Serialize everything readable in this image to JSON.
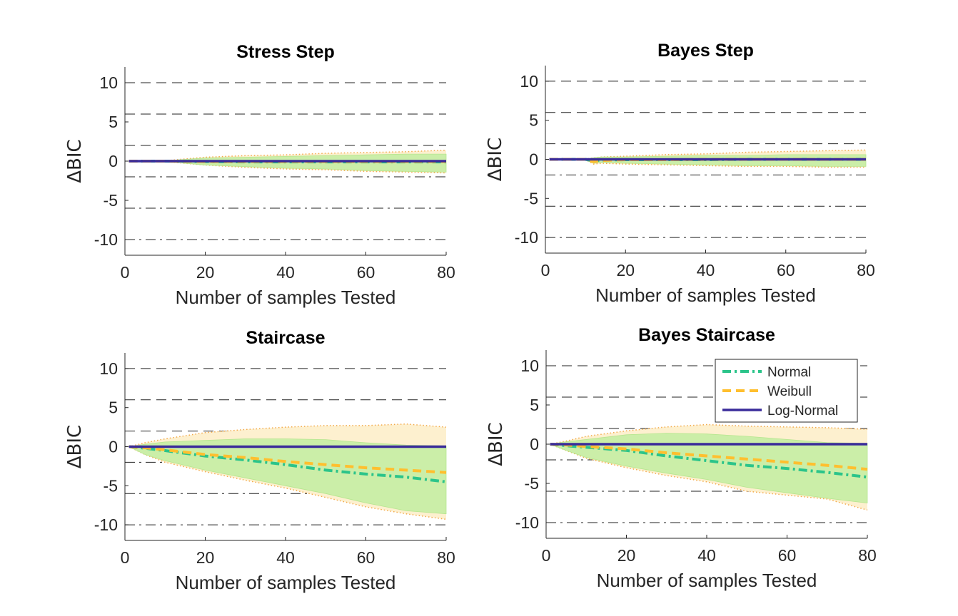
{
  "colors": {
    "normal": "#2bc48a",
    "weibull": "#ffbf2e",
    "lognormal": "#3a2b9a",
    "band_outer": "#fdf0cf",
    "band_inner": "#cbeea8",
    "band_edge": "#f3a94a"
  },
  "legend": {
    "entries": [
      {
        "label": "Normal",
        "style": "dash-dot",
        "color": "#2bc48a"
      },
      {
        "label": "Weibull",
        "style": "dashed",
        "color": "#ffbf2e"
      },
      {
        "label": "Log-Normal",
        "style": "solid",
        "color": "#3a2b9a"
      }
    ]
  },
  "chart_data": [
    {
      "type": "line",
      "title": "Stress Step",
      "xlabel": "Number of samples Tested",
      "ylabel": "ΔBIC",
      "xlim": [
        0,
        80
      ],
      "ylim": [
        -12,
        12
      ],
      "xticks": [
        0,
        20,
        40,
        60,
        80
      ],
      "yticks": [
        10,
        5,
        0,
        -5,
        -10
      ],
      "reference_lines": [
        {
          "y": 10,
          "style": "dashed"
        },
        {
          "y": 6,
          "style": "dashed"
        },
        {
          "y": 2,
          "style": "dashed"
        },
        {
          "y": -2,
          "style": "dash-dot"
        },
        {
          "y": -6,
          "style": "dash-dot"
        },
        {
          "y": -10,
          "style": "dash-dot"
        }
      ],
      "x": [
        1,
        10,
        20,
        30,
        40,
        50,
        60,
        70,
        80
      ],
      "series": [
        {
          "name": "Normal",
          "values": [
            0,
            0,
            -0.05,
            -0.1,
            -0.1,
            -0.1,
            -0.1,
            -0.1,
            -0.1
          ]
        },
        {
          "name": "Weibull",
          "values": [
            0,
            0,
            -0.05,
            -0.05,
            -0.05,
            -0.05,
            -0.05,
            -0.05,
            -0.05
          ]
        },
        {
          "name": "Log-Normal",
          "values": [
            0,
            0,
            0,
            0,
            0,
            0,
            0,
            0,
            0
          ]
        }
      ],
      "band_outer": {
        "upper": [
          0,
          0.05,
          0.5,
          0.7,
          0.8,
          1.0,
          1.1,
          1.2,
          1.4
        ],
        "lower": [
          0,
          -0.05,
          -0.5,
          -0.8,
          -1.0,
          -1.1,
          -1.3,
          -1.4,
          -1.5
        ]
      },
      "band_inner": {
        "upper": [
          0,
          0.05,
          0.4,
          0.5,
          0.6,
          0.7,
          0.8,
          0.9,
          0.9
        ],
        "lower": [
          0,
          -0.05,
          -0.5,
          -0.7,
          -0.9,
          -1.0,
          -1.2,
          -1.3,
          -1.4
        ]
      },
      "legend": false
    },
    {
      "type": "line",
      "title": "Bayes Step",
      "xlabel": "Number of samples Tested",
      "ylabel": "ΔBIC",
      "xlim": [
        0,
        80
      ],
      "ylim": [
        -12,
        12
      ],
      "xticks": [
        0,
        20,
        40,
        60,
        80
      ],
      "yticks": [
        10,
        5,
        0,
        -5,
        -10
      ],
      "reference_lines": [
        {
          "y": 10,
          "style": "dashed"
        },
        {
          "y": 6,
          "style": "dashed"
        },
        {
          "y": 2,
          "style": "dashed"
        },
        {
          "y": -2,
          "style": "dash-dot"
        },
        {
          "y": -6,
          "style": "dash-dot"
        },
        {
          "y": -10,
          "style": "dash-dot"
        }
      ],
      "x": [
        1,
        10,
        12,
        14,
        20,
        30,
        40,
        50,
        60,
        70,
        80
      ],
      "series": [
        {
          "name": "Normal",
          "values": [
            0,
            0,
            -0.2,
            -0.1,
            -0.05,
            -0.05,
            -0.05,
            0,
            0,
            0,
            0
          ]
        },
        {
          "name": "Weibull",
          "values": [
            0,
            0,
            -0.3,
            -0.15,
            -0.05,
            -0.05,
            0,
            0,
            0,
            0,
            0
          ]
        },
        {
          "name": "Log-Normal",
          "values": [
            0,
            0,
            0,
            0,
            0,
            0,
            0,
            0,
            0,
            0,
            0
          ]
        }
      ],
      "band_outer": {
        "upper": [
          0,
          0.05,
          0.2,
          0.3,
          0.4,
          0.6,
          0.7,
          0.9,
          1.0,
          1.1,
          1.2
        ],
        "lower": [
          0,
          -0.05,
          -0.6,
          -0.5,
          -0.6,
          -0.7,
          -0.8,
          -0.9,
          -0.9,
          -1.0,
          -1.0
        ]
      },
      "band_inner": {
        "upper": [
          0,
          0.05,
          0.2,
          0.3,
          0.3,
          0.4,
          0.5,
          0.5,
          0.6,
          0.6,
          0.6
        ],
        "lower": [
          0,
          -0.05,
          -0.5,
          -0.4,
          -0.5,
          -0.6,
          -0.7,
          -0.8,
          -0.8,
          -0.9,
          -0.9
        ]
      },
      "legend": false
    },
    {
      "type": "line",
      "title": "Staircase",
      "xlabel": "Number of samples Tested",
      "ylabel": "ΔBIC",
      "xlim": [
        0,
        80
      ],
      "ylim": [
        -12,
        12
      ],
      "xticks": [
        0,
        20,
        40,
        60,
        80
      ],
      "yticks": [
        10,
        5,
        0,
        -5,
        -10
      ],
      "reference_lines": [
        {
          "y": 10,
          "style": "dashed"
        },
        {
          "y": 6,
          "style": "dashed"
        },
        {
          "y": 2,
          "style": "dashed"
        },
        {
          "y": -2,
          "style": "dash-dot"
        },
        {
          "y": -6,
          "style": "dash-dot"
        },
        {
          "y": -10,
          "style": "dash-dot"
        }
      ],
      "x": [
        1,
        5,
        10,
        20,
        30,
        40,
        50,
        60,
        70,
        80
      ],
      "series": [
        {
          "name": "Normal",
          "values": [
            0,
            -0.2,
            -0.5,
            -1.2,
            -1.7,
            -2.3,
            -3.0,
            -3.5,
            -3.9,
            -4.5
          ]
        },
        {
          "name": "Weibull",
          "values": [
            0,
            -0.15,
            -0.4,
            -1.0,
            -1.4,
            -1.9,
            -2.3,
            -2.7,
            -3.0,
            -3.3
          ]
        },
        {
          "name": "Log-Normal",
          "values": [
            0,
            0,
            0,
            0,
            0,
            0,
            0,
            0,
            0,
            0
          ]
        }
      ],
      "band_outer": {
        "upper": [
          0,
          0.5,
          1.0,
          1.8,
          2.2,
          2.5,
          2.7,
          2.7,
          2.9,
          2.5
        ],
        "lower": [
          0,
          -1.0,
          -2.0,
          -3.2,
          -4.3,
          -5.3,
          -6.5,
          -7.7,
          -8.6,
          -9.3
        ]
      },
      "band_inner": {
        "upper": [
          0,
          0.3,
          0.6,
          0.8,
          1.0,
          1.0,
          0.9,
          0.5,
          0.2,
          0.1
        ],
        "lower": [
          0,
          -1.0,
          -1.8,
          -3.0,
          -4.0,
          -5.0,
          -6.0,
          -7.2,
          -8.2,
          -8.6
        ]
      },
      "legend": false
    },
    {
      "type": "line",
      "title": "Bayes Staircase",
      "xlabel": "Number of samples Tested",
      "ylabel": "ΔBIC",
      "xlim": [
        0,
        80
      ],
      "ylim": [
        -12,
        12
      ],
      "xticks": [
        0,
        20,
        40,
        60,
        80
      ],
      "yticks": [
        10,
        5,
        0,
        -5,
        -10
      ],
      "reference_lines": [
        {
          "y": 10,
          "style": "dashed"
        },
        {
          "y": 6,
          "style": "dashed"
        },
        {
          "y": 2,
          "style": "dashed"
        },
        {
          "y": -2,
          "style": "dash-dot"
        },
        {
          "y": -6,
          "style": "dash-dot"
        },
        {
          "y": -10,
          "style": "dash-dot"
        }
      ],
      "x": [
        1,
        5,
        10,
        20,
        30,
        40,
        50,
        60,
        70,
        80
      ],
      "series": [
        {
          "name": "Normal",
          "values": [
            0,
            -0.2,
            -0.4,
            -0.8,
            -1.5,
            -2.1,
            -2.7,
            -3.1,
            -3.6,
            -4.2
          ]
        },
        {
          "name": "Weibull",
          "values": [
            0,
            -0.1,
            -0.3,
            -0.6,
            -1.1,
            -1.5,
            -1.9,
            -2.3,
            -2.7,
            -3.2
          ]
        },
        {
          "name": "Log-Normal",
          "values": [
            0,
            0,
            0,
            0,
            0,
            0,
            0,
            0,
            0,
            0
          ]
        }
      ],
      "band_outer": {
        "upper": [
          0,
          0.4,
          1.0,
          1.7,
          2.2,
          2.5,
          2.3,
          2.2,
          2.1,
          1.9
        ],
        "lower": [
          0,
          -0.8,
          -1.8,
          -3.0,
          -4.0,
          -4.8,
          -6.0,
          -6.5,
          -7.0,
          -8.4
        ]
      },
      "band_inner": {
        "upper": [
          0,
          0.3,
          0.6,
          1.2,
          1.4,
          1.3,
          1.0,
          0.6,
          0.2,
          0.1
        ],
        "lower": [
          0,
          -0.8,
          -1.7,
          -2.8,
          -3.7,
          -4.5,
          -5.5,
          -6.2,
          -6.9,
          -7.5
        ]
      },
      "legend": true
    }
  ]
}
